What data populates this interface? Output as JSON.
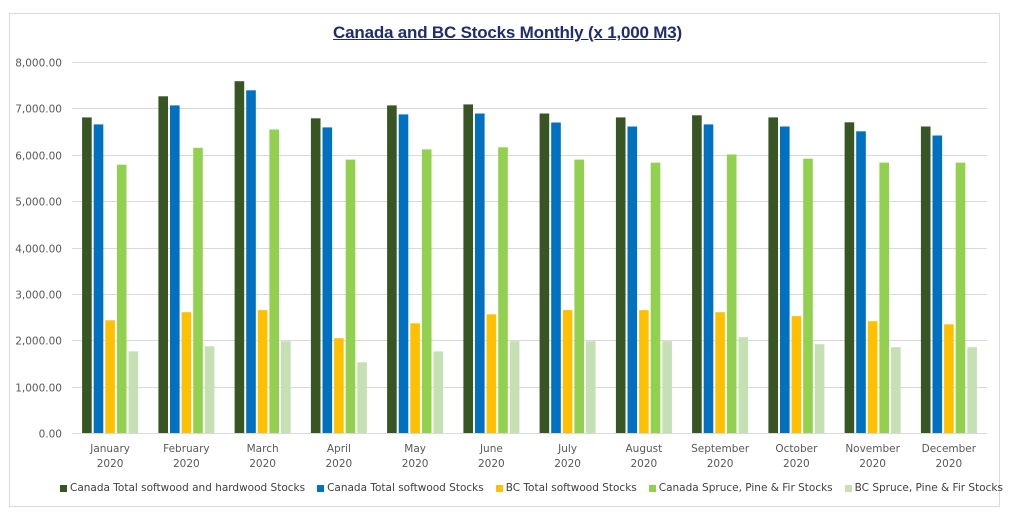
{
  "chart_data": {
    "type": "bar",
    "title": "Canada and BC Stocks  Monthly (x 1,000 M3)",
    "xlabel": "",
    "ylabel": "",
    "ylim": [
      0,
      8000
    ],
    "yticks": [
      "0.00",
      "1,000.00",
      "2,000.00",
      "3,000.00",
      "4,000.00",
      "5,000.00",
      "6,000.00",
      "7,000.00",
      "8,000.00"
    ],
    "ytick_values": [
      0,
      1000,
      2000,
      3000,
      4000,
      5000,
      6000,
      7000,
      8000
    ],
    "grid": true,
    "legend_position": "bottom",
    "categories": [
      {
        "month": "January",
        "year": "2020"
      },
      {
        "month": "February",
        "year": "2020"
      },
      {
        "month": "March",
        "year": "2020"
      },
      {
        "month": "April",
        "year": "2020"
      },
      {
        "month": "May",
        "year": "2020"
      },
      {
        "month": "June",
        "year": "2020"
      },
      {
        "month": "July",
        "year": "2020"
      },
      {
        "month": "August",
        "year": "2020"
      },
      {
        "month": "September",
        "year": "2020"
      },
      {
        "month": "October",
        "year": "2020"
      },
      {
        "month": "November",
        "year": "2020"
      },
      {
        "month": "December",
        "year": "2020"
      }
    ],
    "series": [
      {
        "name": "Canada Total softwood and hardwood Stocks",
        "color": "#375623",
        "values": [
          6805,
          7260,
          7585,
          6785,
          7065,
          7085,
          6890,
          6805,
          6850,
          6805,
          6700,
          6610
        ]
      },
      {
        "name": "Canada Total softwood Stocks",
        "color": "#0070c0",
        "values": [
          6655,
          7065,
          7390,
          6590,
          6870,
          6890,
          6695,
          6610,
          6655,
          6610,
          6505,
          6415
        ]
      },
      {
        "name": "BC Total softwood Stocks",
        "color": "#ffc000",
        "values": [
          2430,
          2605,
          2650,
          2045,
          2365,
          2560,
          2650,
          2650,
          2605,
          2520,
          2410,
          2345
        ]
      },
      {
        "name": "Canada Spruce, Pine & Fir Stocks",
        "color": "#92d050",
        "values": [
          5785,
          6150,
          6545,
          5895,
          6115,
          6160,
          5895,
          5830,
          6005,
          5915,
          5830,
          5830
        ]
      },
      {
        "name": "BC Spruce, Pine & Fir Stocks",
        "color": "#c5e0b4",
        "values": [
          1760,
          1870,
          1980,
          1525,
          1760,
          1980,
          1980,
          1980,
          2065,
          1915,
          1850,
          1850
        ]
      }
    ]
  }
}
